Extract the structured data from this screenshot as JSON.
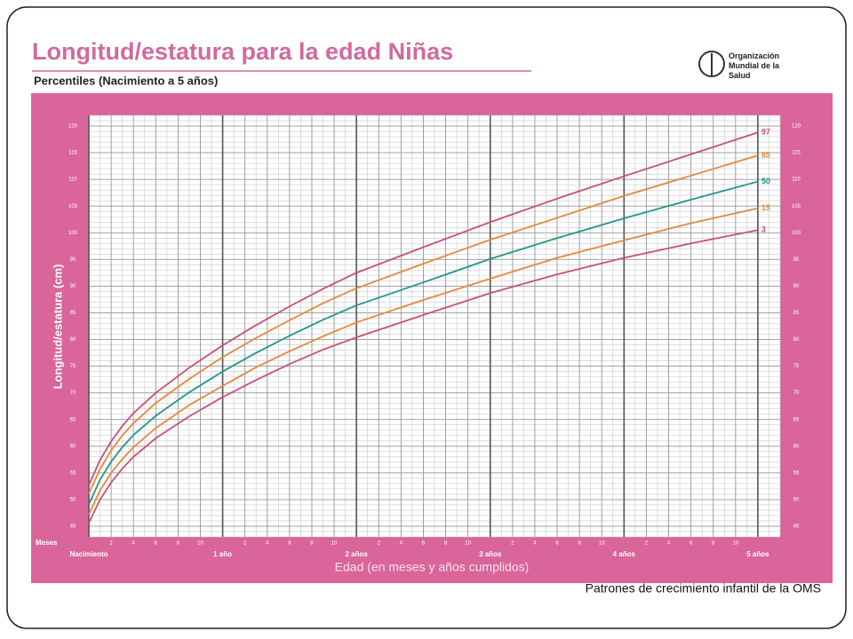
{
  "chart_data": {
    "type": "line",
    "title": "Longitud/estatura para la edad Niñas",
    "subtitle": "Percentiles (Nacimiento a 5 años)",
    "organization": "Organización Mundial de la Salud",
    "source": "Patrones de crecimiento infantil de la OMS",
    "y_label": "Longitud/estatura (cm)",
    "x_label": "Edad (en meses y años cumplidos)",
    "x_unit_label": "Meses",
    "x": [
      0,
      1,
      2,
      3,
      4,
      6,
      9,
      12,
      15,
      18,
      21,
      24,
      30,
      36,
      42,
      48,
      54,
      60
    ],
    "series": [
      {
        "name": "97",
        "color": "#c8507a",
        "values": [
          52.7,
          57.4,
          60.9,
          63.8,
          66.2,
          70.0,
          74.7,
          78.9,
          82.7,
          86.2,
          89.5,
          92.5,
          97.3,
          102.0,
          106.4,
          110.6,
          114.7,
          118.8
        ]
      },
      {
        "name": "85",
        "color": "#e3893d",
        "values": [
          51.1,
          55.7,
          59.2,
          62.0,
          64.3,
          68.1,
          72.6,
          76.7,
          80.3,
          83.6,
          86.8,
          89.6,
          94.2,
          98.7,
          102.8,
          106.9,
          110.7,
          114.5
        ]
      },
      {
        "name": "50",
        "color": "#23968a",
        "values": [
          49.1,
          53.7,
          57.1,
          59.8,
          62.1,
          65.7,
          70.1,
          74.0,
          77.5,
          80.7,
          83.7,
          86.4,
          90.7,
          95.1,
          99.0,
          102.7,
          106.2,
          109.6
        ]
      },
      {
        "name": "15",
        "color": "#e3893d",
        "values": [
          47.2,
          51.7,
          55.0,
          57.6,
          59.8,
          63.4,
          67.7,
          71.3,
          74.8,
          77.8,
          80.6,
          83.2,
          87.4,
          91.4,
          95.3,
          98.6,
          101.8,
          104.6
        ]
      },
      {
        "name": "3",
        "color": "#c8507a",
        "values": [
          45.6,
          50.0,
          53.2,
          55.8,
          58.0,
          61.5,
          65.6,
          69.2,
          72.4,
          75.4,
          78.1,
          80.4,
          84.6,
          88.7,
          92.2,
          95.3,
          98.0,
          100.5
        ]
      }
    ],
    "xlim": [
      0,
      62
    ],
    "ylim": [
      43,
      122
    ],
    "yticks": [
      45,
      50,
      55,
      60,
      65,
      70,
      75,
      80,
      85,
      90,
      95,
      100,
      105,
      110,
      115,
      120
    ],
    "xticks": [
      2,
      4,
      6,
      8,
      10,
      {
        "value": 14,
        "label": "2"
      },
      {
        "value": 16,
        "label": "4"
      },
      {
        "value": 18,
        "label": "6"
      },
      {
        "value": 20,
        "label": "8"
      },
      {
        "value": 22,
        "label": "10"
      },
      {
        "value": 26,
        "label": "2"
      },
      {
        "value": 28,
        "label": "4"
      },
      {
        "value": 30,
        "label": "6"
      },
      {
        "value": 32,
        "label": "8"
      },
      {
        "value": 34,
        "label": "10"
      },
      {
        "value": 38,
        "label": "2"
      },
      {
        "value": 40,
        "label": "4"
      },
      {
        "value": 42,
        "label": "6"
      },
      {
        "value": 44,
        "label": "8"
      },
      {
        "value": 46,
        "label": "10"
      },
      {
        "value": 50,
        "label": "2"
      },
      {
        "value": 52,
        "label": "4"
      },
      {
        "value": 54,
        "label": "6"
      },
      {
        "value": 56,
        "label": "8"
      },
      {
        "value": 58,
        "label": "10"
      }
    ],
    "xticks_major": [
      {
        "value": 0,
        "label": "Nacimiento"
      },
      {
        "value": 12,
        "label": "1 año"
      },
      {
        "value": 24,
        "label": "2 años"
      },
      {
        "value": 36,
        "label": "3 años"
      },
      {
        "value": 48,
        "label": "4 años"
      },
      {
        "value": 60,
        "label": "5 años"
      }
    ],
    "grid": true
  }
}
